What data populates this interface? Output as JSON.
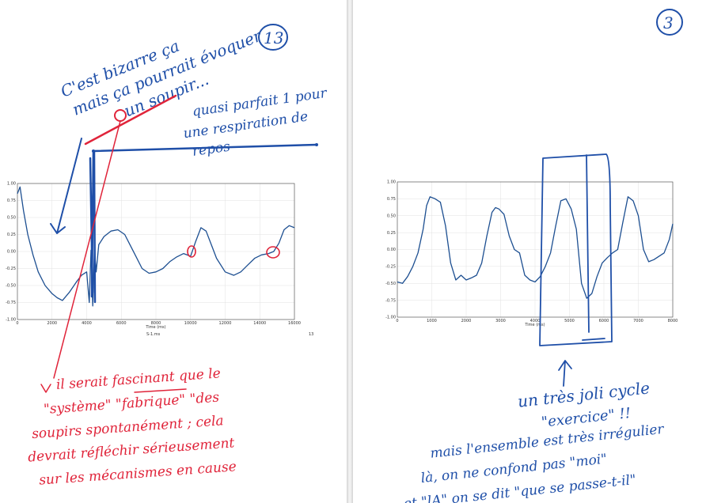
{
  "left_page": {
    "page_number": "13",
    "note_top": [
      "C'est bizarre ça",
      "mais ça pourrait évoquer",
      "un soupir..."
    ],
    "note_rest": [
      "quasi parfait 1 pour",
      "une respiration de",
      "repos"
    ],
    "note_red": [
      "il serait fascinant que le",
      "\"système\" \"fabrique\" \"des",
      "soupirs spontanément ; cela",
      "devrait réfléchir sérieusement",
      "sur les mécanismes en cause"
    ],
    "footer_left": "S-1.ms",
    "footer_right": "13"
  },
  "right_page": {
    "page_number": "3",
    "note_cycle": [
      "un très joli cycle",
      "\"exercice\" !!"
    ],
    "note_irregular": [
      "mais l'ensemble est très irrégulier",
      "là, on ne confond pas \"moi\"",
      "et \"lA\" on se dit \"que se passe-t-il\""
    ]
  },
  "chart_data": [
    {
      "type": "line",
      "xlabel": "Time (ms)",
      "ylabel": "",
      "xlim": [
        0,
        16000
      ],
      "ylim": [
        -1.0,
        1.0
      ],
      "x_ticks": [
        "0",
        "2000",
        "4000",
        "6000",
        "8000",
        "10000",
        "12000",
        "14000",
        "16000"
      ],
      "y_ticks": [
        "1.00",
        "0.75",
        "0.50",
        "0.25",
        "0.00",
        "-0.25",
        "-0.50",
        "-0.75",
        "-1.00"
      ],
      "grid": true,
      "series": [
        {
          "x": [
            0,
            150,
            350,
            600,
            900,
            1200,
            1600,
            2000,
            2300,
            2600,
            3000,
            3400,
            3700,
            4000,
            4150,
            4250,
            4350,
            4450,
            4550,
            4700,
            5000,
            5400,
            5800,
            6200,
            6500,
            6800,
            7200,
            7600,
            8000,
            8400,
            8800,
            9200,
            9600,
            10000,
            10300,
            10600,
            10900,
            11200,
            11500,
            12000,
            12500,
            12900,
            13300,
            13700,
            14100,
            14500,
            14800,
            15100,
            15400,
            15700,
            16000
          ],
          "y": [
            0.85,
            0.95,
            0.6,
            0.25,
            -0.05,
            -0.3,
            -0.5,
            -0.62,
            -0.68,
            -0.72,
            -0.6,
            -0.45,
            -0.35,
            -0.3,
            -0.75,
            0.02,
            -0.8,
            0.05,
            -0.3,
            0.1,
            0.22,
            0.3,
            0.32,
            0.25,
            0.1,
            -0.05,
            -0.25,
            -0.32,
            -0.3,
            -0.25,
            -0.15,
            -0.08,
            -0.03,
            -0.07,
            0.15,
            0.35,
            0.3,
            0.1,
            -0.1,
            -0.3,
            -0.35,
            -0.3,
            -0.2,
            -0.1,
            -0.05,
            -0.03,
            0.0,
            0.12,
            0.32,
            0.38,
            0.35
          ]
        }
      ]
    },
    {
      "type": "line",
      "xlabel": "Time (ms)",
      "ylabel": "",
      "xlim": [
        0,
        8000
      ],
      "ylim": [
        -1.0,
        1.0
      ],
      "x_ticks": [
        "0",
        "1000",
        "2000",
        "3000",
        "4000",
        "5000",
        "6000",
        "7000",
        "8000"
      ],
      "y_ticks": [
        "1.00",
        "0.75",
        "0.50",
        "0.25",
        "0.00",
        "-0.25",
        "-0.50",
        "-0.75",
        "-1.00"
      ],
      "grid": true,
      "series": [
        {
          "x": [
            0,
            150,
            300,
            450,
            600,
            750,
            850,
            950,
            1100,
            1250,
            1400,
            1550,
            1700,
            1850,
            2000,
            2150,
            2300,
            2450,
            2600,
            2750,
            2850,
            2950,
            3100,
            3250,
            3400,
            3550,
            3700,
            3850,
            4000,
            4150,
            4300,
            4450,
            4600,
            4750,
            4900,
            5050,
            5200,
            5350,
            5500,
            5650,
            5800,
            5950,
            6100,
            6250,
            6400,
            6550,
            6700,
            6850,
            7000,
            7150,
            7300,
            7450,
            7600,
            7750,
            7900,
            8000
          ],
          "y": [
            -0.48,
            -0.5,
            -0.4,
            -0.25,
            -0.05,
            0.3,
            0.65,
            0.78,
            0.75,
            0.7,
            0.35,
            -0.2,
            -0.45,
            -0.38,
            -0.45,
            -0.42,
            -0.38,
            -0.2,
            0.2,
            0.55,
            0.62,
            0.6,
            0.52,
            0.2,
            0.0,
            -0.05,
            -0.38,
            -0.45,
            -0.48,
            -0.4,
            -0.25,
            -0.05,
            0.35,
            0.72,
            0.75,
            0.6,
            0.3,
            -0.5,
            -0.72,
            -0.65,
            -0.4,
            -0.2,
            -0.12,
            -0.05,
            0.0,
            0.4,
            0.78,
            0.72,
            0.5,
            0.0,
            -0.18,
            -0.15,
            -0.1,
            -0.05,
            0.15,
            0.38
          ]
        }
      ]
    }
  ]
}
